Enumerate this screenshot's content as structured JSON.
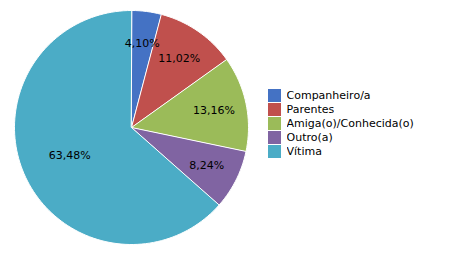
{
  "chart_data": {
    "type": "pie",
    "categories": [
      "Companheiro/a",
      "Parentes",
      "Amiga(o)/Conhecida(o)",
      "Outro(a)",
      "Vítima"
    ],
    "values": [
      4.1,
      11.02,
      13.16,
      8.24,
      63.48
    ],
    "value_labels": [
      "4,10%",
      "11,02%",
      "13,16%",
      "8,24%",
      "63,48%"
    ],
    "colors": [
      "#4472C4",
      "#C0504D",
      "#9BBB59",
      "#8064A2",
      "#4BACC6"
    ],
    "data_labels": true,
    "legend": "right"
  }
}
